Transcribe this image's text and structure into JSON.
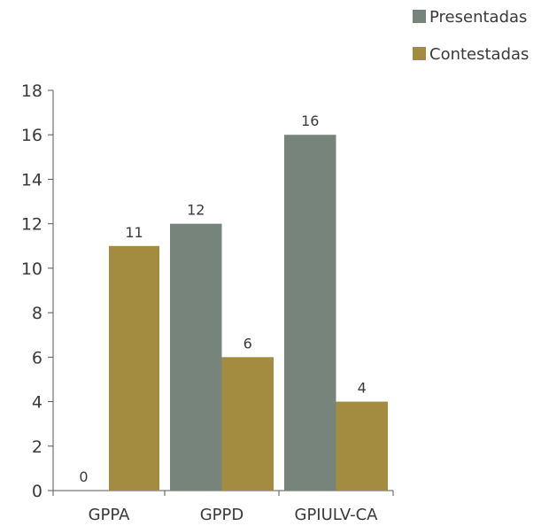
{
  "chart_data": {
    "type": "bar",
    "categories": [
      "GPPA",
      "GPPD",
      "GPIULV-CA"
    ],
    "series": [
      {
        "name": "Presentadas",
        "color": "#76847b",
        "values": [
          0,
          12,
          16
        ]
      },
      {
        "name": "Contestadas",
        "color": "#a38c40",
        "values": [
          11,
          6,
          4
        ]
      }
    ],
    "ylim": [
      0,
      18
    ],
    "yticks": [
      0,
      2,
      4,
      6,
      8,
      10,
      12,
      14,
      16,
      18
    ],
    "data_labels": true,
    "legend_position": "top-right",
    "grid": false
  }
}
